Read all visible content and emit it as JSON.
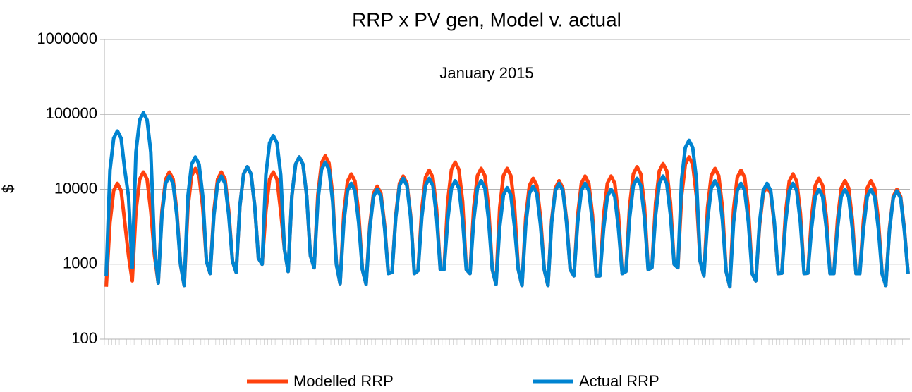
{
  "chart_data": {
    "type": "line",
    "title": "RRP x PV gen, Model v. actual",
    "subtitle": "January 2015",
    "y_label": "$",
    "log_scale": true,
    "grid": true,
    "legend": "bottom",
    "ylim": [
      100,
      1000000
    ],
    "yticks": [
      100,
      1000,
      10000,
      100000,
      1000000
    ],
    "categories": [
      null,
      null,
      null,
      null,
      null,
      null,
      null,
      null,
      null,
      null,
      null,
      null,
      null,
      null,
      null,
      null,
      null,
      null,
      null,
      null,
      null,
      null,
      null,
      null,
      null,
      null,
      null,
      null,
      null,
      null,
      null,
      null,
      null,
      null,
      null,
      null,
      null,
      null,
      null,
      null,
      null,
      null,
      null,
      null,
      null,
      null,
      null,
      null,
      null,
      null,
      null,
      null,
      null,
      null,
      null,
      null,
      null,
      null,
      null,
      null,
      null,
      null,
      null,
      null,
      null,
      null,
      null,
      null,
      null,
      null,
      null,
      null,
      null,
      null,
      null,
      null,
      null,
      null,
      null,
      null,
      null,
      null,
      null,
      null,
      null,
      null,
      null,
      null,
      null,
      null,
      null,
      null,
      null,
      null,
      null,
      null,
      null,
      null,
      null,
      null,
      null,
      null,
      null,
      null,
      null,
      null,
      null,
      null,
      null,
      null,
      null,
      null,
      null,
      null,
      null,
      null,
      null,
      null,
      null,
      null,
      null,
      null,
      null,
      null,
      null,
      null,
      null,
      null,
      null,
      null,
      null,
      null,
      null,
      null,
      null,
      null,
      null,
      null,
      null,
      null,
      null,
      null,
      null,
      null,
      null,
      null,
      null,
      null,
      null,
      null,
      null,
      null,
      null,
      null,
      null,
      null,
      null,
      null,
      null,
      null,
      null,
      null,
      null,
      null,
      null,
      null,
      null,
      null,
      null,
      null,
      null,
      null,
      null,
      null,
      null,
      null,
      null,
      null,
      null,
      null,
      null,
      null,
      null,
      null,
      null,
      null,
      null,
      null,
      null,
      null,
      null,
      null,
      null,
      null,
      null,
      null,
      null,
      null,
      null,
      null,
      null,
      null,
      null,
      null,
      null,
      null,
      null,
      null,
      null,
      null,
      null,
      null,
      null,
      null,
      null,
      null,
      null
    ],
    "series": [
      {
        "name": "Modelled RRP",
        "color": "#ff420e",
        "values": [
          500,
          3600,
          9600,
          12000,
          9600,
          3600,
          1300,
          600,
          5100,
          13600,
          17000,
          13600,
          5100,
          1300,
          560,
          5100,
          13600,
          17000,
          13600,
          5100,
          1000,
          520,
          5700,
          15200,
          19000,
          15200,
          5700,
          1100,
          750,
          5100,
          13600,
          17000,
          13600,
          5100,
          1100,
          780,
          6000,
          16000,
          20000,
          16000,
          6000,
          1200,
          1000,
          5100,
          13600,
          17000,
          13600,
          5100,
          1600,
          800,
          8100,
          21600,
          27000,
          21600,
          8100,
          1300,
          900,
          8400,
          22400,
          28000,
          22400,
          8400,
          1000,
          550,
          4800,
          12800,
          16000,
          12800,
          4800,
          850,
          540,
          3300,
          8800,
          11000,
          8800,
          3300,
          750,
          780,
          4500,
          12000,
          15000,
          12000,
          4500,
          750,
          820,
          5400,
          14400,
          18000,
          14400,
          5400,
          850,
          850,
          6900,
          18400,
          23000,
          18400,
          6900,
          850,
          750,
          5700,
          15200,
          19000,
          15200,
          5700,
          850,
          540,
          5700,
          15200,
          19000,
          15200,
          5700,
          850,
          520,
          4200,
          11200,
          14000,
          11200,
          4200,
          850,
          520,
          3900,
          10400,
          13000,
          10400,
          3900,
          850,
          700,
          4500,
          12000,
          15000,
          12000,
          4500,
          700,
          700,
          4500,
          12000,
          15000,
          12000,
          4500,
          750,
          800,
          6000,
          16000,
          20000,
          16000,
          6000,
          850,
          900,
          6600,
          17600,
          22000,
          17600,
          6600,
          1000,
          900,
          8100,
          21600,
          27000,
          21600,
          8100,
          1100,
          700,
          5700,
          15200,
          19000,
          15200,
          5700,
          800,
          500,
          5400,
          14400,
          18000,
          14400,
          5400,
          750,
          600,
          3300,
          8800,
          11000,
          8800,
          3300,
          750,
          760,
          4800,
          12800,
          16000,
          12800,
          4800,
          750,
          760,
          4200,
          11200,
          14000,
          11200,
          4200,
          750,
          750,
          3900,
          10400,
          13000,
          10400,
          3900,
          750,
          750,
          3900,
          10400,
          13000,
          10400,
          3900,
          750,
          520,
          3000,
          8000,
          10000,
          8000,
          3000,
          750
        ]
      },
      {
        "name": "Actual RRP",
        "color": "#0084d1",
        "values": [
          700,
          18000,
          48000,
          60000,
          48000,
          18000,
          8000,
          900,
          31500,
          84000,
          105000,
          84000,
          31500,
          1600,
          560,
          4500,
          12000,
          15000,
          12000,
          4500,
          1000,
          520,
          8100,
          21600,
          27000,
          21600,
          8100,
          1100,
          750,
          4500,
          12000,
          15000,
          12000,
          4500,
          1100,
          780,
          6000,
          16000,
          20000,
          16000,
          6000,
          1200,
          1000,
          15600,
          41600,
          52000,
          41600,
          15600,
          1600,
          800,
          8100,
          21600,
          27000,
          21600,
          8100,
          1300,
          900,
          6900,
          18400,
          23000,
          18400,
          6900,
          1000,
          550,
          3600,
          9600,
          12000,
          9600,
          3600,
          850,
          540,
          3000,
          8000,
          10000,
          8000,
          3000,
          750,
          780,
          4200,
          11200,
          14000,
          11200,
          4200,
          750,
          820,
          4200,
          11200,
          14000,
          11200,
          4200,
          850,
          850,
          3900,
          10400,
          13000,
          10400,
          3900,
          850,
          750,
          3900,
          10400,
          13000,
          10400,
          3900,
          850,
          540,
          3150,
          8400,
          10500,
          8400,
          3150,
          850,
          520,
          3300,
          8800,
          11000,
          8800,
          3300,
          850,
          520,
          3600,
          9600,
          12000,
          9600,
          3600,
          850,
          700,
          3600,
          9600,
          12000,
          9600,
          3600,
          700,
          700,
          3000,
          8000,
          10000,
          8000,
          3000,
          750,
          800,
          4200,
          11200,
          14000,
          11200,
          4200,
          850,
          900,
          4500,
          12000,
          15000,
          12000,
          4500,
          1000,
          900,
          13500,
          36000,
          45000,
          36000,
          13500,
          1100,
          700,
          3900,
          10400,
          13000,
          10400,
          3900,
          800,
          500,
          3600,
          9600,
          12000,
          9600,
          3600,
          750,
          600,
          3600,
          9600,
          12000,
          9600,
          3600,
          750,
          760,
          3600,
          9600,
          12000,
          9600,
          3600,
          750,
          760,
          3000,
          8000,
          10000,
          8000,
          3000,
          750,
          750,
          3000,
          8000,
          10000,
          8000,
          3000,
          750,
          750,
          3000,
          8000,
          10000,
          8000,
          3000,
          750,
          520,
          2850,
          7600,
          9500,
          7600,
          2850,
          750
        ]
      }
    ]
  }
}
